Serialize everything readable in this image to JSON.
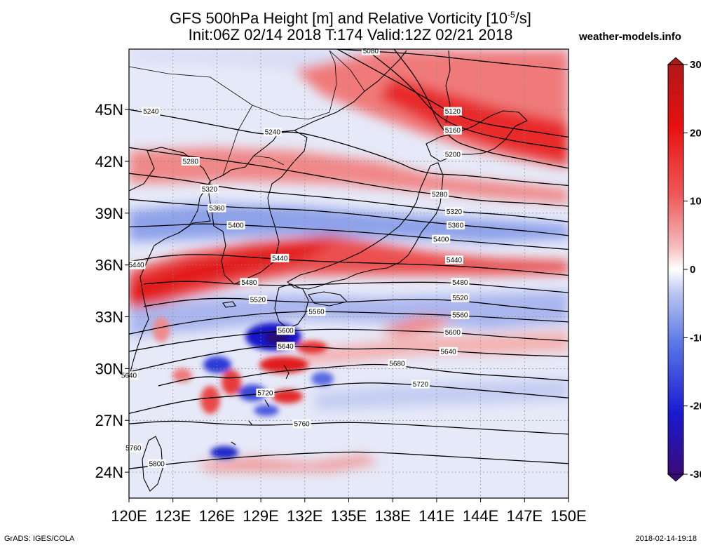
{
  "title": {
    "line1_pre": "GFS 500hPa Height [m] and Relative Vorticity [10",
    "line1_sup": "-5",
    "line1_post": "/s]",
    "line2": "Init:06Z 02/14 2018 T:174 Valid:12Z 02/21 2018"
  },
  "site": "weather-models.info",
  "footer": {
    "left": "GrADS: IGES/COLA",
    "right": "2018-02-14-19:18"
  },
  "map": {
    "lon_range": [
      120,
      150
    ],
    "lat_range": [
      22.5,
      48.5
    ],
    "lon_ticks": [
      {
        "value": 120,
        "label": "120E"
      },
      {
        "value": 123,
        "label": "123E"
      },
      {
        "value": 126,
        "label": "126E"
      },
      {
        "value": 129,
        "label": "129E"
      },
      {
        "value": 132,
        "label": "132E"
      },
      {
        "value": 135,
        "label": "135E"
      },
      {
        "value": 138,
        "label": "138E"
      },
      {
        "value": 141,
        "label": "141E"
      },
      {
        "value": 144,
        "label": "144E"
      },
      {
        "value": 147,
        "label": "147E"
      },
      {
        "value": 150,
        "label": "150E"
      }
    ],
    "lat_ticks": [
      {
        "value": 24,
        "label": "24N"
      },
      {
        "value": 27,
        "label": "27N"
      },
      {
        "value": 30,
        "label": "30N"
      },
      {
        "value": 33,
        "label": "33N"
      },
      {
        "value": 36,
        "label": "36N"
      },
      {
        "value": 39,
        "label": "39N"
      },
      {
        "value": 42,
        "label": "42N"
      },
      {
        "value": 45,
        "label": "45N"
      }
    ]
  },
  "colorbar": {
    "ticks": [
      {
        "value": 30,
        "label": "30"
      },
      {
        "value": 20,
        "label": "20"
      },
      {
        "value": 10,
        "label": "10"
      },
      {
        "value": 0,
        "label": "0"
      },
      {
        "value": -10,
        "label": "-10"
      },
      {
        "value": -20,
        "label": "-20"
      },
      {
        "value": -30,
        "label": "-30"
      }
    ],
    "colors": [
      "#3a0a7a",
      "#1a1ad0",
      "#5a78e6",
      "#b8c4f0",
      "#ffffff",
      "#f4b8b8",
      "#ee5a5a",
      "#e81010",
      "#b01818"
    ]
  },
  "contours": [
    {
      "value": 5080,
      "label": "5080",
      "pts": [
        [
          132.5,
          48.6
        ],
        [
          136,
          48.4
        ],
        [
          140,
          48.2
        ],
        [
          144,
          47.8
        ],
        [
          150,
          47.3
        ]
      ],
      "labels": [
        [
          136.5,
          48.4
        ]
      ]
    },
    {
      "value": 5120,
      "label": "5120",
      "pts": [
        [
          134,
          48.6
        ],
        [
          137,
          47.2
        ],
        [
          140,
          45.8
        ],
        [
          142,
          44.8
        ],
        [
          144,
          44.2
        ],
        [
          147,
          43.8
        ],
        [
          150,
          43.4
        ]
      ],
      "labels": [
        [
          142.1,
          44.9
        ]
      ]
    },
    {
      "value": 5160,
      "label": "5160",
      "pts": [
        [
          136,
          48.6
        ],
        [
          139,
          46.6
        ],
        [
          141,
          44.6
        ],
        [
          143,
          43.8
        ],
        [
          146,
          43.2
        ],
        [
          150,
          42.7
        ]
      ],
      "labels": [
        [
          142.1,
          43.8
        ]
      ]
    },
    {
      "value": 5200,
      "label": "5200",
      "pts": [
        [
          138,
          48.6
        ],
        [
          140,
          46.4
        ],
        [
          141.5,
          43.4
        ],
        [
          144,
          42.6
        ],
        [
          147,
          42.1
        ],
        [
          150,
          41.6
        ]
      ],
      "labels": [
        [
          142.1,
          42.4
        ]
      ]
    },
    {
      "value": 5240,
      "label": "5240",
      "pts": [
        [
          120,
          45.0
        ],
        [
          124,
          44.4
        ],
        [
          127,
          43.9
        ],
        [
          129.5,
          43.5
        ],
        [
          131,
          43.8
        ],
        [
          134,
          43.2
        ],
        [
          138,
          42.1
        ],
        [
          140,
          41.3
        ],
        [
          143,
          41.2
        ],
        [
          146,
          40.9
        ],
        [
          150,
          40.6
        ]
      ],
      "labels": [
        [
          121.5,
          44.9
        ],
        [
          129.8,
          43.7
        ]
      ]
    },
    {
      "value": 5280,
      "label": "5280",
      "pts": [
        [
          120,
          42.8
        ],
        [
          124,
          42.3
        ],
        [
          127,
          42.0
        ],
        [
          130,
          41.6
        ],
        [
          134,
          41.0
        ],
        [
          138,
          40.4
        ],
        [
          141,
          40.1
        ],
        [
          144,
          39.7
        ],
        [
          147,
          39.6
        ],
        [
          150,
          39.4
        ]
      ],
      "labels": [
        [
          124.2,
          42.0
        ],
        [
          141.2,
          40.1
        ]
      ]
    },
    {
      "value": 5320,
      "label": "5320",
      "pts": [
        [
          120,
          41.3
        ],
        [
          124,
          40.9
        ],
        [
          127,
          40.4
        ],
        [
          131,
          40.1
        ],
        [
          135,
          39.8
        ],
        [
          139,
          39.4
        ],
        [
          142,
          39.1
        ],
        [
          146,
          38.9
        ],
        [
          150,
          38.5
        ]
      ],
      "labels": [
        [
          125.5,
          40.4
        ],
        [
          142.2,
          39.1
        ]
      ]
    },
    {
      "value": 5360,
      "label": "5360",
      "pts": [
        [
          120,
          39.8
        ],
        [
          124,
          39.5
        ],
        [
          128,
          39.3
        ],
        [
          132,
          39.2
        ],
        [
          136,
          38.9
        ],
        [
          140,
          38.5
        ],
        [
          144,
          38.2
        ],
        [
          148,
          37.9
        ],
        [
          150,
          37.7
        ]
      ],
      "labels": [
        [
          126,
          39.3
        ],
        [
          142.3,
          38.3
        ]
      ]
    },
    {
      "value": 5400,
      "label": "5400",
      "pts": [
        [
          120,
          38.2
        ],
        [
          123,
          38.3
        ],
        [
          125,
          38.4
        ],
        [
          128,
          38.3
        ],
        [
          132,
          38.1
        ],
        [
          136,
          37.9
        ],
        [
          140,
          37.6
        ],
        [
          144,
          37.3
        ],
        [
          150,
          36.9
        ]
      ],
      "labels": [
        [
          127.3,
          38.3
        ],
        [
          141.3,
          37.5
        ]
      ]
    },
    {
      "value": 5440,
      "label": "5440",
      "pts": [
        [
          120,
          36.2
        ],
        [
          123,
          36.6
        ],
        [
          126,
          36.6
        ],
        [
          129,
          36.4
        ],
        [
          133,
          36.2
        ],
        [
          137,
          36.1
        ],
        [
          141,
          36.0
        ],
        [
          145,
          35.8
        ],
        [
          150,
          35.4
        ]
      ],
      "labels": [
        [
          120.5,
          36.0
        ],
        [
          130.3,
          36.4
        ],
        [
          142.2,
          36.3
        ]
      ]
    },
    {
      "value": 5480,
      "label": "5480",
      "pts": [
        [
          121,
          34.9
        ],
        [
          124,
          35.1
        ],
        [
          127,
          34.9
        ],
        [
          130,
          34.8
        ],
        [
          134,
          34.9
        ],
        [
          138,
          35.0
        ],
        [
          142,
          35.0
        ],
        [
          146,
          34.7
        ],
        [
          150,
          34.4
        ]
      ],
      "labels": [
        [
          128.2,
          35.0
        ],
        [
          142.6,
          35.0
        ]
      ]
    },
    {
      "value": 5520,
      "label": "5520",
      "pts": [
        [
          121,
          33.6
        ],
        [
          124,
          34.0
        ],
        [
          127,
          34.1
        ],
        [
          130,
          33.9
        ],
        [
          134,
          33.8
        ],
        [
          138,
          34.0
        ],
        [
          142,
          34.0
        ],
        [
          146,
          33.6
        ],
        [
          150,
          33.3
        ]
      ],
      "labels": [
        [
          128.8,
          34.0
        ],
        [
          142.6,
          34.1
        ]
      ]
    },
    {
      "value": 5560,
      "label": "5560",
      "pts": [
        [
          120,
          32.0
        ],
        [
          124,
          32.7
        ],
        [
          128,
          33.1
        ],
        [
          131,
          33.3
        ],
        [
          134,
          33.3
        ],
        [
          138,
          33.2
        ],
        [
          142,
          33.1
        ],
        [
          146,
          32.9
        ],
        [
          150,
          32.7
        ]
      ],
      "labels": [
        [
          132.8,
          33.3
        ],
        [
          142.6,
          33.1
        ]
      ]
    },
    {
      "value": 5600,
      "label": "5600",
      "pts": [
        [
          120,
          31.0
        ],
        [
          124,
          31.6
        ],
        [
          128,
          32.0
        ],
        [
          131,
          32.2
        ],
        [
          134,
          32.3
        ],
        [
          138,
          32.2
        ],
        [
          142,
          32.1
        ],
        [
          146,
          31.8
        ],
        [
          150,
          31.6
        ]
      ],
      "labels": [
        [
          130.7,
          32.2
        ],
        [
          142.1,
          32.1
        ]
      ]
    },
    {
      "value": 5640,
      "label": "5640",
      "pts": [
        [
          120,
          29.8
        ],
        [
          123,
          30.4
        ],
        [
          126,
          30.9
        ],
        [
          129,
          31.3
        ],
        [
          132,
          31.3
        ],
        [
          135,
          31.1
        ],
        [
          138,
          31.2
        ],
        [
          142,
          31.0
        ],
        [
          146,
          30.8
        ],
        [
          150,
          30.7
        ]
      ],
      "labels": [
        [
          120,
          29.6
        ],
        [
          130.7,
          31.3
        ],
        [
          141.8,
          31.0
        ]
      ]
    },
    {
      "value": 5680,
      "label": "5680",
      "pts": [
        [
          122,
          29.0
        ],
        [
          125,
          29.6
        ],
        [
          127,
          29.4
        ],
        [
          129,
          29.7
        ],
        [
          131,
          29.9
        ],
        [
          134,
          30.1
        ],
        [
          137,
          30.3
        ],
        [
          140,
          30.0
        ],
        [
          143,
          29.7
        ],
        [
          147,
          29.5
        ],
        [
          150,
          29.3
        ]
      ],
      "labels": [
        [
          138.3,
          30.3
        ]
      ]
    },
    {
      "value": 5720,
      "label": "5720",
      "pts": [
        [
          120,
          27.4
        ],
        [
          124,
          28.2
        ],
        [
          127,
          28.4
        ],
        [
          130,
          28.6
        ],
        [
          133,
          29.0
        ],
        [
          136,
          29.2
        ],
        [
          139,
          29.1
        ],
        [
          142,
          28.9
        ],
        [
          146,
          28.6
        ],
        [
          150,
          28.3
        ]
      ],
      "labels": [
        [
          129.3,
          28.6
        ],
        [
          139.9,
          29.1
        ]
      ]
    },
    {
      "value": 5760,
      "label": "5760",
      "pts": [
        [
          120,
          26.8
        ],
        [
          123,
          27.0
        ],
        [
          126,
          26.8
        ],
        [
          129,
          26.7
        ],
        [
          132,
          26.8
        ],
        [
          135,
          26.9
        ],
        [
          138,
          26.8
        ],
        [
          142,
          26.6
        ],
        [
          146,
          26.4
        ],
        [
          150,
          26.2
        ]
      ],
      "labels": [
        [
          120.3,
          25.4
        ],
        [
          131.8,
          26.8
        ]
      ]
    },
    {
      "value": 5800,
      "label": "5800",
      "pts": [
        [
          120,
          24.2
        ],
        [
          124,
          24.6
        ],
        [
          128,
          24.9
        ],
        [
          132,
          25.1
        ],
        [
          136,
          25.2
        ],
        [
          140,
          25.0
        ],
        [
          144,
          24.8
        ],
        [
          150,
          24.5
        ]
      ],
      "labels": [
        [
          121.9,
          24.5
        ]
      ]
    }
  ]
}
